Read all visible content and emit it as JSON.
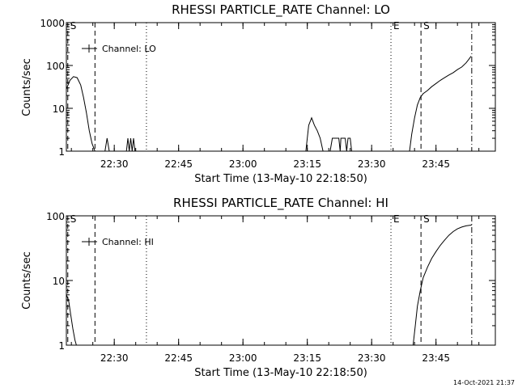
{
  "footer_stamp": "14-Oct-2021 21:37",
  "chart_data": [
    {
      "type": "line",
      "title": "RHESSI PARTICLE_RATE Channel: LO",
      "xlabel": "Start Time (13-May-10 22:18:50)",
      "ylabel": "Counts/sec",
      "yscale": "log",
      "ylim": [
        1,
        1000
      ],
      "xlim": [
        "22:18:50",
        "23:58:50"
      ],
      "x_ticks": [
        "22:30",
        "22:45",
        "23:00",
        "23:15",
        "23:30",
        "23:45"
      ],
      "y_ticks": [
        "1",
        "10",
        "100",
        "1000"
      ],
      "legend": {
        "placement": "top-left",
        "label": "Channel: LO"
      },
      "markers": [
        {
          "label": "S",
          "time": "22:19:10",
          "style": "dashed"
        },
        {
          "time": "22:25:30",
          "style": "dashed"
        },
        {
          "time": "22:37:30",
          "style": "dotted"
        },
        {
          "label": "E",
          "time": "23:34:30",
          "style": "dotted"
        },
        {
          "label": "S",
          "time": "23:41:30",
          "style": "dashed"
        },
        {
          "time": "23:53:20",
          "style": "dashdot"
        }
      ],
      "series": [
        {
          "segments": [
            [
              [
                "22:18:50",
                28
              ],
              [
                "22:19:40",
                45
              ],
              [
                "22:20:30",
                55
              ],
              [
                "22:21:20",
                52
              ],
              [
                "22:22:10",
                35
              ],
              [
                "22:22:50",
                18
              ],
              [
                "22:23:30",
                8
              ],
              [
                "22:24:10",
                3
              ],
              [
                "22:24:50",
                1.5
              ],
              [
                "22:25:30",
                1
              ]
            ],
            [
              [
                "22:27:50",
                1
              ],
              [
                "22:28:20",
                2
              ],
              [
                "22:28:50",
                1
              ]
            ],
            [
              [
                "22:32:50",
                1
              ],
              [
                "22:33:10",
                2
              ],
              [
                "22:33:30",
                1
              ],
              [
                "22:33:50",
                2
              ],
              [
                "22:34:10",
                1
              ],
              [
                "22:34:30",
                2
              ],
              [
                "22:34:50",
                1
              ]
            ],
            [
              [
                "23:14:40",
                1
              ],
              [
                "23:15:20",
                4
              ],
              [
                "23:16:00",
                6
              ],
              [
                "23:16:40",
                4
              ],
              [
                "23:17:20",
                3
              ],
              [
                "23:18:00",
                2
              ],
              [
                "23:18:40",
                1
              ]
            ],
            [
              [
                "23:20:20",
                1
              ],
              [
                "23:20:50",
                2
              ],
              [
                "23:21:20",
                2
              ],
              [
                "23:21:50",
                2
              ],
              [
                "23:22:20",
                2
              ],
              [
                "23:22:40",
                1
              ],
              [
                "23:22:50",
                2
              ],
              [
                "23:23:50",
                2
              ],
              [
                "23:24:10",
                1
              ],
              [
                "23:24:30",
                2
              ],
              [
                "23:25:00",
                2
              ],
              [
                "23:25:20",
                1
              ]
            ],
            [
              [
                "23:38:50",
                1
              ],
              [
                "23:39:20",
                2.5
              ],
              [
                "23:40:00",
                6
              ],
              [
                "23:40:40",
                12
              ],
              [
                "23:41:20",
                18
              ],
              [
                "23:42:00",
                22
              ],
              [
                "23:43:00",
                26
              ],
              [
                "23:44:00",
                32
              ],
              [
                "23:45:00",
                38
              ],
              [
                "23:46:00",
                45
              ],
              [
                "23:47:00",
                52
              ],
              [
                "23:48:00",
                60
              ],
              [
                "23:49:00",
                68
              ],
              [
                "23:50:00",
                80
              ],
              [
                "23:51:00",
                92
              ],
              [
                "23:52:00",
                115
              ],
              [
                "23:52:40",
                140
              ],
              [
                "23:53:10",
                165
              ]
            ]
          ]
        }
      ]
    },
    {
      "type": "line",
      "title": "RHESSI PARTICLE_RATE Channel: HI",
      "xlabel": "Start Time (13-May-10 22:18:50)",
      "ylabel": "Counts/sec",
      "yscale": "log",
      "ylim": [
        1,
        100
      ],
      "xlim": [
        "22:18:50",
        "23:58:50"
      ],
      "x_ticks": [
        "22:30",
        "22:45",
        "23:00",
        "23:15",
        "23:30",
        "23:45"
      ],
      "y_ticks": [
        "1",
        "10",
        "100"
      ],
      "legend": {
        "placement": "top-left",
        "label": "Channel: HI"
      },
      "markers": [
        {
          "label": "S",
          "time": "22:19:10",
          "style": "dashed"
        },
        {
          "time": "22:25:30",
          "style": "dashed"
        },
        {
          "time": "22:37:30",
          "style": "dotted"
        },
        {
          "label": "E",
          "time": "23:34:30",
          "style": "dotted"
        },
        {
          "label": "S",
          "time": "23:41:30",
          "style": "dashed"
        },
        {
          "time": "23:53:20",
          "style": "dashdot"
        }
      ],
      "series": [
        {
          "segments": [
            [
              [
                "22:18:50",
                6
              ],
              [
                "22:19:20",
                5
              ],
              [
                "22:19:50",
                3
              ],
              [
                "22:20:20",
                1.8
              ],
              [
                "22:20:50",
                1.2
              ],
              [
                "22:21:10",
                1
              ]
            ],
            [
              [
                "23:39:40",
                1
              ],
              [
                "23:40:10",
                2
              ],
              [
                "23:40:40",
                4
              ],
              [
                "23:41:20",
                7
              ],
              [
                "23:42:00",
                11
              ],
              [
                "23:43:00",
                16
              ],
              [
                "23:44:00",
                22
              ],
              [
                "23:45:00",
                28
              ],
              [
                "23:46:00",
                35
              ],
              [
                "23:47:00",
                42
              ],
              [
                "23:48:00",
                50
              ],
              [
                "23:49:00",
                57
              ],
              [
                "23:50:00",
                63
              ],
              [
                "23:51:00",
                67
              ],
              [
                "23:52:00",
                70
              ],
              [
                "23:53:20",
                72
              ]
            ]
          ]
        }
      ]
    }
  ]
}
